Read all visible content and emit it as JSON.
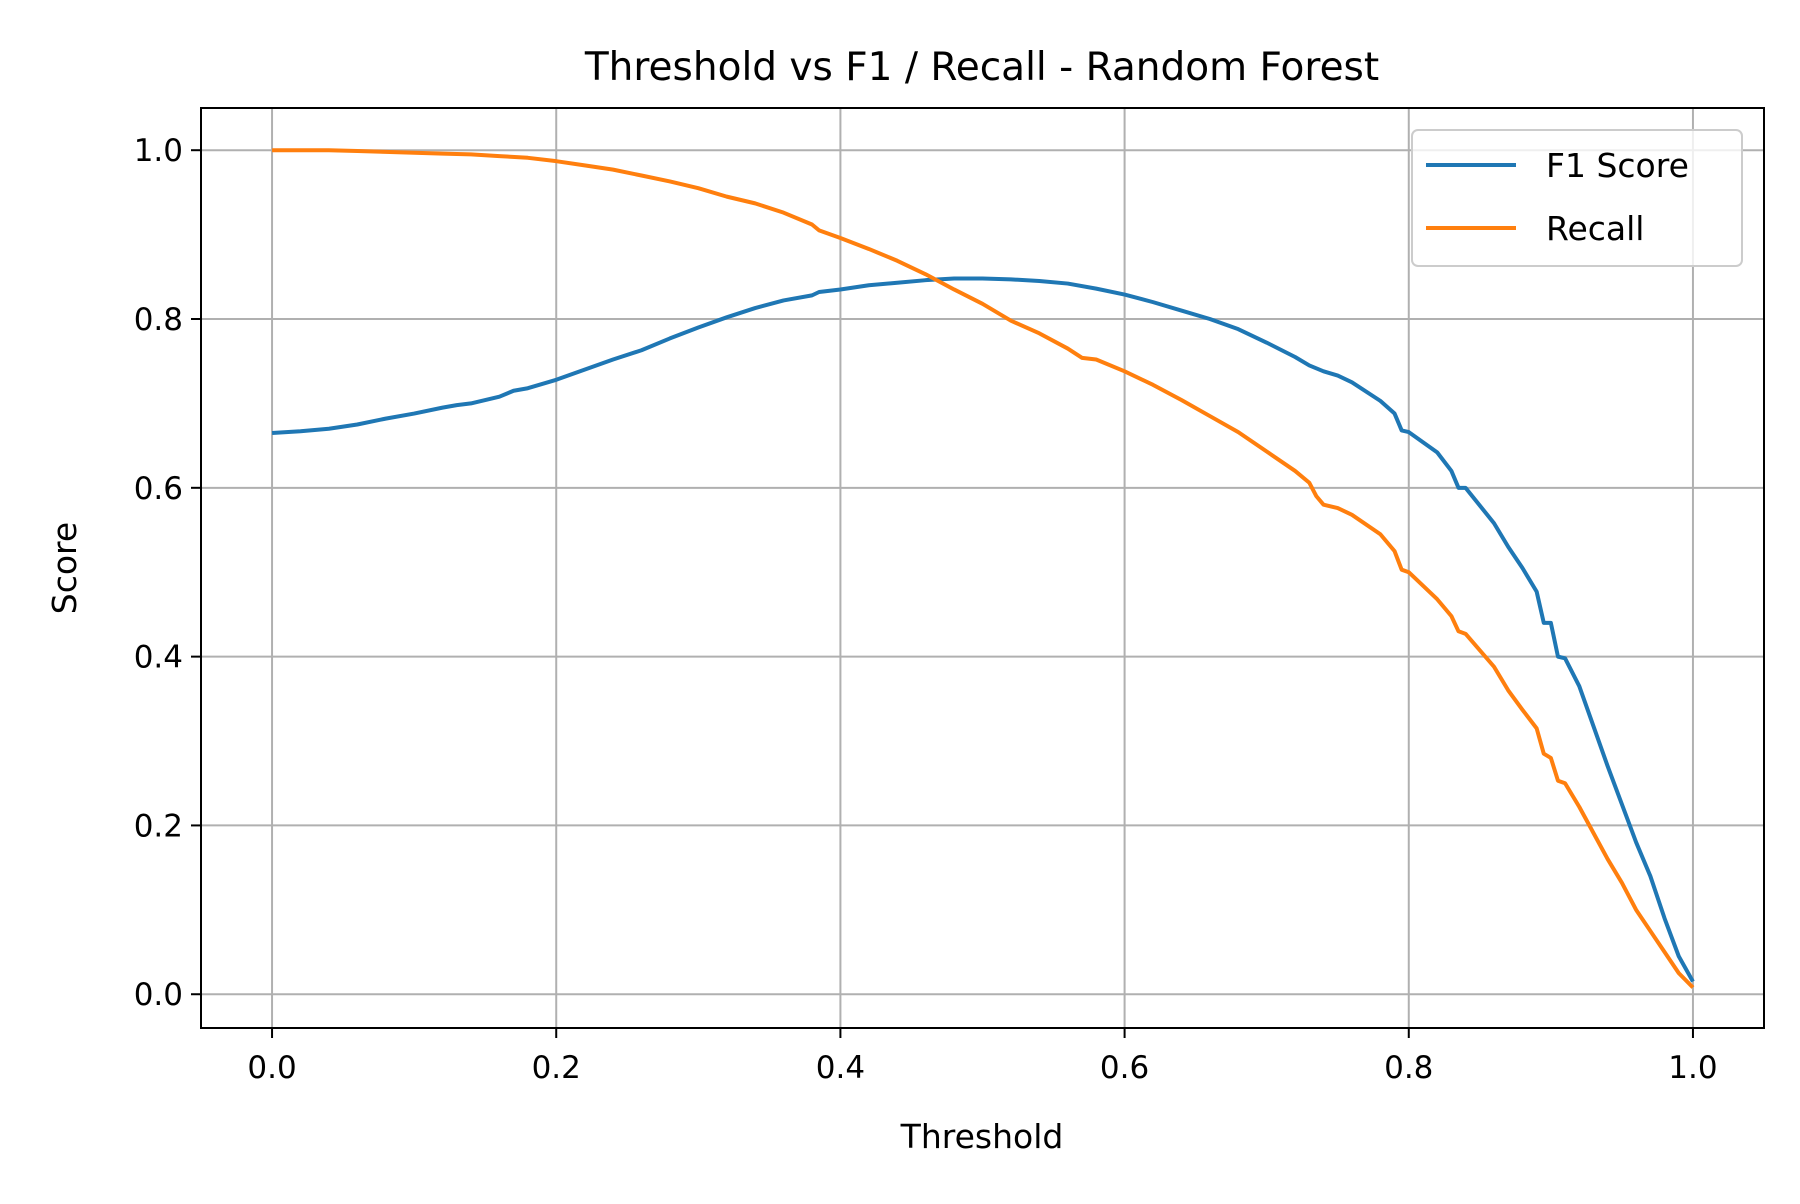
{
  "chart_data": {
    "type": "line",
    "title": "Threshold vs F1 / Recall - Random Forest",
    "xlabel": "Threshold",
    "ylabel": "Score",
    "xlim": [
      -0.05,
      1.05
    ],
    "ylim": [
      -0.04,
      1.05
    ],
    "xticks": [
      0.0,
      0.2,
      0.4,
      0.6,
      0.8,
      1.0
    ],
    "xtick_labels": [
      "0.0",
      "0.2",
      "0.4",
      "0.6",
      "0.8",
      "1.0"
    ],
    "yticks": [
      0.0,
      0.2,
      0.4,
      0.6,
      0.8,
      1.0
    ],
    "ytick_labels": [
      "0.0",
      "0.2",
      "0.4",
      "0.6",
      "0.8",
      "1.0"
    ],
    "grid": true,
    "legend_position": "top-right",
    "series": [
      {
        "name": "F1 Score",
        "color": "#1f77b4",
        "x": [
          0.0,
          0.02,
          0.04,
          0.06,
          0.08,
          0.1,
          0.12,
          0.13,
          0.14,
          0.16,
          0.17,
          0.18,
          0.2,
          0.22,
          0.24,
          0.26,
          0.28,
          0.3,
          0.32,
          0.34,
          0.36,
          0.38,
          0.385,
          0.4,
          0.42,
          0.44,
          0.46,
          0.48,
          0.5,
          0.52,
          0.54,
          0.56,
          0.58,
          0.6,
          0.62,
          0.64,
          0.66,
          0.68,
          0.7,
          0.72,
          0.73,
          0.74,
          0.75,
          0.76,
          0.78,
          0.79,
          0.795,
          0.8,
          0.82,
          0.83,
          0.835,
          0.84,
          0.86,
          0.87,
          0.88,
          0.89,
          0.895,
          0.9,
          0.905,
          0.91,
          0.92,
          0.94,
          0.95,
          0.96,
          0.97,
          0.98,
          0.99,
          1.0
        ],
        "y": [
          0.665,
          0.667,
          0.67,
          0.675,
          0.682,
          0.688,
          0.695,
          0.698,
          0.7,
          0.708,
          0.715,
          0.718,
          0.728,
          0.74,
          0.752,
          0.763,
          0.777,
          0.79,
          0.802,
          0.813,
          0.822,
          0.828,
          0.832,
          0.835,
          0.84,
          0.843,
          0.846,
          0.848,
          0.848,
          0.847,
          0.845,
          0.842,
          0.836,
          0.829,
          0.82,
          0.81,
          0.8,
          0.788,
          0.772,
          0.755,
          0.745,
          0.738,
          0.733,
          0.725,
          0.703,
          0.688,
          0.668,
          0.666,
          0.642,
          0.62,
          0.6,
          0.6,
          0.558,
          0.53,
          0.505,
          0.477,
          0.44,
          0.44,
          0.4,
          0.398,
          0.365,
          0.27,
          0.225,
          0.18,
          0.14,
          0.09,
          0.045,
          0.015
        ]
      },
      {
        "name": "Recall",
        "color": "#ff7f0e",
        "x": [
          0.0,
          0.02,
          0.04,
          0.06,
          0.08,
          0.1,
          0.12,
          0.14,
          0.16,
          0.18,
          0.2,
          0.22,
          0.24,
          0.26,
          0.28,
          0.3,
          0.32,
          0.34,
          0.36,
          0.38,
          0.385,
          0.4,
          0.42,
          0.44,
          0.46,
          0.48,
          0.5,
          0.52,
          0.54,
          0.56,
          0.57,
          0.58,
          0.6,
          0.62,
          0.64,
          0.66,
          0.68,
          0.7,
          0.72,
          0.73,
          0.735,
          0.74,
          0.75,
          0.76,
          0.78,
          0.79,
          0.795,
          0.8,
          0.82,
          0.83,
          0.835,
          0.84,
          0.86,
          0.87,
          0.88,
          0.89,
          0.895,
          0.9,
          0.905,
          0.91,
          0.92,
          0.94,
          0.95,
          0.96,
          0.97,
          0.98,
          0.99,
          1.0
        ],
        "y": [
          1.0,
          1.0,
          1.0,
          0.999,
          0.998,
          0.997,
          0.996,
          0.995,
          0.993,
          0.991,
          0.987,
          0.982,
          0.977,
          0.97,
          0.963,
          0.955,
          0.945,
          0.937,
          0.926,
          0.912,
          0.905,
          0.896,
          0.883,
          0.869,
          0.853,
          0.835,
          0.818,
          0.798,
          0.783,
          0.765,
          0.754,
          0.752,
          0.738,
          0.722,
          0.704,
          0.685,
          0.666,
          0.643,
          0.62,
          0.606,
          0.59,
          0.58,
          0.576,
          0.568,
          0.545,
          0.525,
          0.503,
          0.5,
          0.468,
          0.448,
          0.43,
          0.427,
          0.388,
          0.36,
          0.337,
          0.315,
          0.285,
          0.28,
          0.253,
          0.25,
          0.222,
          0.16,
          0.132,
          0.1,
          0.075,
          0.05,
          0.025,
          0.008
        ]
      }
    ]
  }
}
